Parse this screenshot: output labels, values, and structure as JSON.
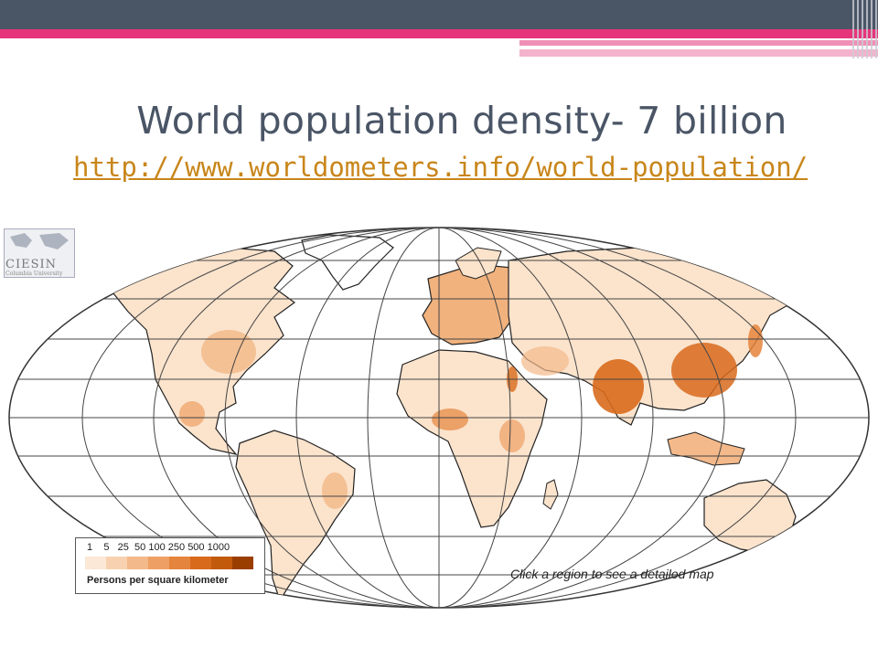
{
  "slide": {
    "title": "World population density- 7 billion",
    "link": "http://www.worldometers.info/world-population/"
  },
  "map": {
    "logo": {
      "name": "CIESIN",
      "subtitle": "Columbia University"
    },
    "legend": {
      "values": [
        "1",
        "5",
        "25",
        "50",
        "100",
        "250",
        "500",
        "1000"
      ],
      "label": "Persons per square kilometer",
      "colors": [
        "#fbe8d6",
        "#f8d2b0",
        "#f4b98a",
        "#eea064",
        "#e5843c",
        "#d86a1c",
        "#c25a0c",
        "#9a3e00"
      ]
    },
    "instruction": "Click a region to see a detailed map",
    "colors": {
      "ocean": "#ffffff",
      "land_low": "#fbe3cc",
      "land_mid": "#f1b27e",
      "land_high": "#d86a1c",
      "grid": "#444444"
    }
  }
}
